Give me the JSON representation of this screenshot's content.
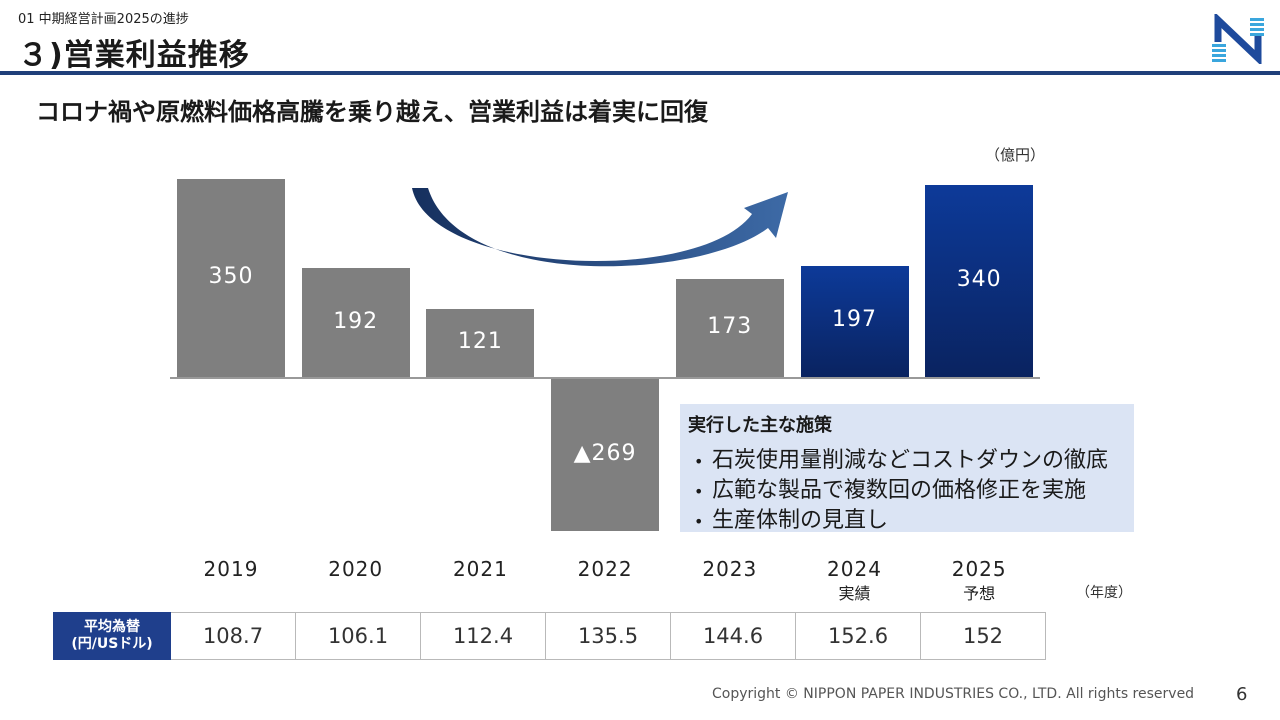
{
  "header": {
    "section_label": "01  中期経営計画2025の進捗",
    "title": "３)営業利益推移",
    "subtitle": "コロナ禍や原燃料価格高騰を乗り越え、営業利益は着実に回復"
  },
  "chart_data": {
    "type": "bar",
    "categories": [
      "2019",
      "2020",
      "2021",
      "2022",
      "2023",
      "2024",
      "2025"
    ],
    "category_sublabels": [
      "",
      "",
      "",
      "",
      "",
      "実績",
      "予想"
    ],
    "values": [
      350,
      192,
      121,
      -269,
      173,
      197,
      340
    ],
    "value_labels": [
      "350",
      "192",
      "121",
      "▲269",
      "173",
      "197",
      "340"
    ],
    "unit_label": "（億円）",
    "x_unit_label": "（年度）",
    "bar_colors": [
      "#7f7f7f",
      "#7f7f7f",
      "#7f7f7f",
      "#7f7f7f",
      "#7f7f7f",
      "#0c2a6e",
      "#0c2a6e"
    ],
    "ylim": [
      -290,
      370
    ],
    "legend": "none",
    "grid": false
  },
  "policies": {
    "title": "実行した主な施策",
    "items": [
      "石炭使用量削減などコストダウンの徹底",
      "広範な製品で複数回の価格修正を実施",
      "生産体制の見直し"
    ]
  },
  "exchange_rate": {
    "header_line1": "平均為替",
    "header_line2": "(円/USドル)",
    "values": [
      "108.7",
      "106.1",
      "112.4",
      "135.5",
      "144.6",
      "152.6",
      "152"
    ]
  },
  "footer": {
    "copyright": "Copyright © NIPPON PAPER INDUSTRIES CO., LTD. All rights reserved",
    "page_number": "6"
  },
  "colors": {
    "accent": "#1f3f7a",
    "bar_gray": "#7f7f7f",
    "bar_navy": "#0c2a6e",
    "policy_bg": "#dbe4f4"
  }
}
